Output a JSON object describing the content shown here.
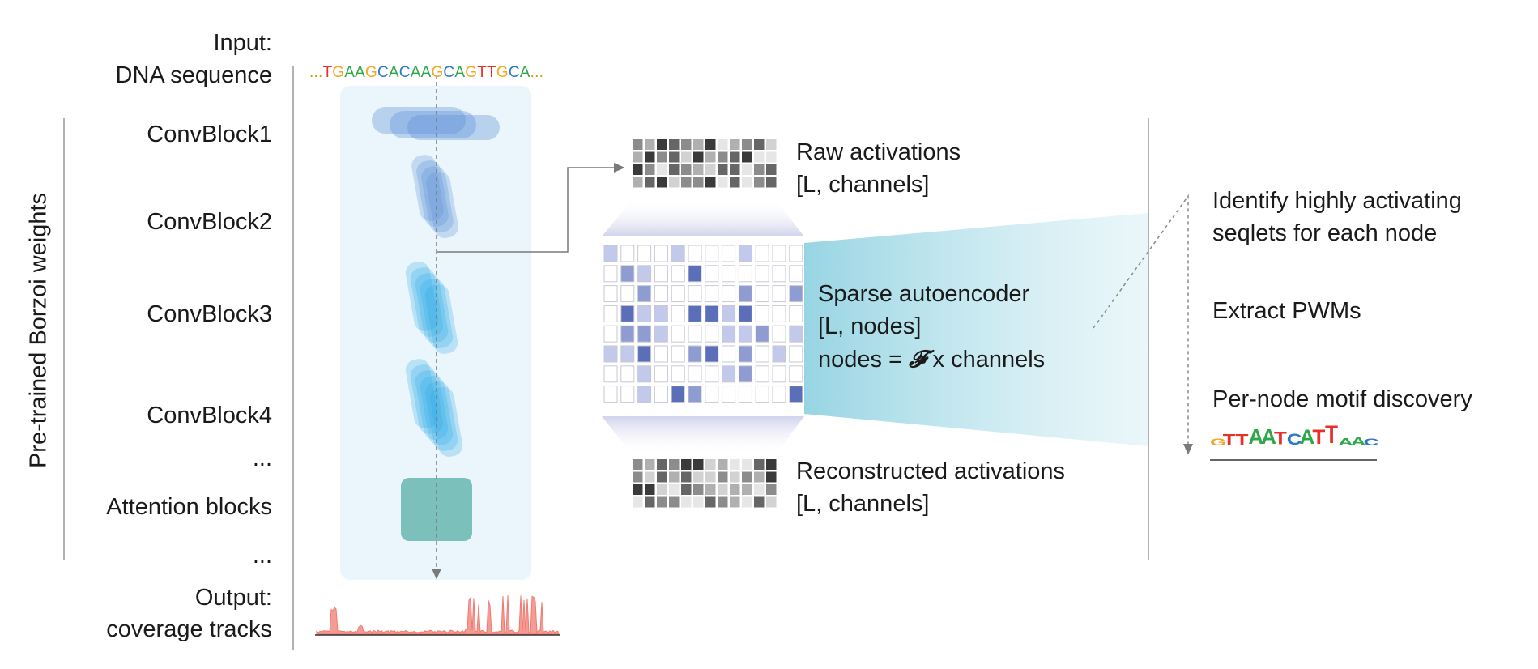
{
  "left_labels": {
    "input_line1": "Input:",
    "input_line2": "DNA sequence",
    "conv1": "ConvBlock1",
    "conv2": "ConvBlock2",
    "conv3": "ConvBlock3",
    "conv4": "ConvBlock4",
    "ellipsis1": "...",
    "attention": "Attention blocks",
    "ellipsis2": "...",
    "output_line1": "Output:",
    "output_line2": "coverage tracks"
  },
  "vertical_label": "Pre-trained Borzoi weights",
  "dna_sequence": [
    {
      "t": "...",
      "c": "#c8a000"
    },
    {
      "t": "T",
      "c": "#e8302a"
    },
    {
      "t": "G",
      "c": "#f5a623"
    },
    {
      "t": "A",
      "c": "#2ea84a"
    },
    {
      "t": "A",
      "c": "#2ea84a"
    },
    {
      "t": "G",
      "c": "#f5a623"
    },
    {
      "t": "C",
      "c": "#2b78c4"
    },
    {
      "t": "A",
      "c": "#2ea84a"
    },
    {
      "t": "C",
      "c": "#2b78c4"
    },
    {
      "t": "A",
      "c": "#2ea84a"
    },
    {
      "t": "A",
      "c": "#2ea84a"
    },
    {
      "t": "G",
      "c": "#f5a623"
    },
    {
      "t": "C",
      "c": "#2b78c4"
    },
    {
      "t": "A",
      "c": "#2ea84a"
    },
    {
      "t": "G",
      "c": "#f5a623"
    },
    {
      "t": "T",
      "c": "#e8302a"
    },
    {
      "t": "T",
      "c": "#e8302a"
    },
    {
      "t": "G",
      "c": "#f5a623"
    },
    {
      "t": "C",
      "c": "#2b78c4"
    },
    {
      "t": "A",
      "c": "#2ea84a"
    },
    {
      "t": "...",
      "c": "#c8a000"
    }
  ],
  "activations": {
    "raw_line1": "Raw activations",
    "raw_line2": "[L, channels]",
    "recon_line1": "Reconstructed activations",
    "recon_line2": "[L, channels]"
  },
  "sae": {
    "line1": "Sparse autoencoder",
    "line2": "[L, nodes]",
    "line3_prefix": "nodes = ",
    "line3_symbol": "𝓕",
    "line3_suffix": " x channels"
  },
  "right_steps": {
    "step1_line1": "Identify highly activating",
    "step1_line2": "seqlets for each node",
    "step2": "Extract PWMs",
    "step3": "Per-node motif discovery"
  },
  "motif_logo": [
    {
      "t": "G",
      "c": "#f5a623",
      "h": 0.45
    },
    {
      "t": "T",
      "c": "#e8302a",
      "h": 0.7
    },
    {
      "t": "T",
      "c": "#e8302a",
      "h": 0.7
    },
    {
      "t": "A",
      "c": "#2ea84a",
      "h": 1.0
    },
    {
      "t": "A",
      "c": "#2ea84a",
      "h": 1.0
    },
    {
      "t": "T",
      "c": "#e8302a",
      "h": 0.85
    },
    {
      "t": "C",
      "c": "#2b78c4",
      "h": 0.75
    },
    {
      "t": "A",
      "c": "#2ea84a",
      "h": 0.95
    },
    {
      "t": "T",
      "c": "#e8302a",
      "h": 0.95
    },
    {
      "t": "T",
      "c": "#e8302a",
      "h": 1.2
    },
    {
      "t": "A",
      "c": "#2ea84a",
      "h": 0.5
    },
    {
      "t": "A",
      "c": "#2ea84a",
      "h": 0.55
    },
    {
      "t": "C",
      "c": "#2b78c4",
      "h": 0.45
    }
  ],
  "colors": {
    "panel_bg": "#eaf6fb",
    "conv_block1": "#5b8fd6",
    "conv_block_cyan": "#29a9e6",
    "attention_block": "#7cc0bb",
    "heatmap_grey_dark": "#3a3a3a",
    "heatmap_blue": "#5a6fb8",
    "coverage_track": "#f07a70",
    "arrow": "#808080"
  }
}
